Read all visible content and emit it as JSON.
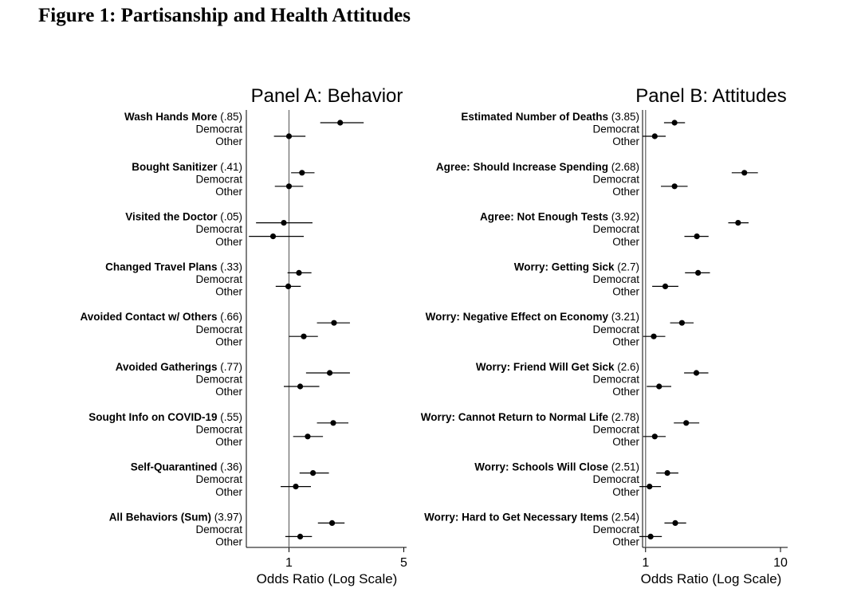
{
  "figure": {
    "title": "Figure 1: Partisanship and Health Attitudes"
  },
  "row_labels": {
    "democrat": "Democrat",
    "other": "Other"
  },
  "chart_data": [
    {
      "type": "scatter",
      "title": "Panel A: Behavior",
      "xlabel": "Odds Ratio (Log Scale)",
      "x_scale": "log",
      "xlim": [
        0.55,
        5.2
      ],
      "xticks": [
        1,
        5
      ],
      "reference_line": 1,
      "groups": [
        {
          "label": "Wash Hands More",
          "mean": "(.85)",
          "democrat": {
            "or": 2.05,
            "ci": [
              1.55,
              2.85
            ]
          },
          "other": {
            "or": 1.0,
            "ci": [
              0.81,
              1.26
            ]
          }
        },
        {
          "label": "Bought Sanitizer",
          "mean": "(.41)",
          "democrat": {
            "or": 1.2,
            "ci": [
              1.03,
              1.43
            ]
          },
          "other": {
            "or": 1.0,
            "ci": [
              0.82,
              1.22
            ]
          }
        },
        {
          "label": "Visited the Doctor",
          "mean": "(.05)",
          "democrat": {
            "or": 0.93,
            "ci": [
              0.63,
              1.39
            ]
          },
          "other": {
            "or": 0.8,
            "ci": [
              0.57,
              1.23
            ]
          }
        },
        {
          "label": "Changed Travel Plans",
          "mean": "(.33)",
          "democrat": {
            "or": 1.15,
            "ci": [
              0.98,
              1.37
            ]
          },
          "other": {
            "or": 0.99,
            "ci": [
              0.83,
              1.18
            ]
          }
        },
        {
          "label": "Avoided Contact w/ Others",
          "mean": "(.66)",
          "democrat": {
            "or": 1.88,
            "ci": [
              1.48,
              2.35
            ]
          },
          "other": {
            "or": 1.23,
            "ci": [
              1.0,
              1.5
            ]
          }
        },
        {
          "label": "Avoided Gatherings",
          "mean": "(.77)",
          "democrat": {
            "or": 1.77,
            "ci": [
              1.27,
              2.35
            ]
          },
          "other": {
            "or": 1.17,
            "ci": [
              0.93,
              1.53
            ]
          }
        },
        {
          "label": "Sought Info on COVID-19",
          "mean": "(.55)",
          "democrat": {
            "or": 1.86,
            "ci": [
              1.48,
              2.3
            ]
          },
          "other": {
            "or": 1.3,
            "ci": [
              1.06,
              1.61
            ]
          }
        },
        {
          "label": "Self-Quarantined",
          "mean": "(.36)",
          "democrat": {
            "or": 1.4,
            "ci": [
              1.16,
              1.75
            ]
          },
          "other": {
            "or": 1.1,
            "ci": [
              0.89,
              1.36
            ]
          }
        },
        {
          "label": "All Behaviors (Sum)",
          "mean": "(3.97)",
          "democrat": {
            "or": 1.83,
            "ci": [
              1.5,
              2.18
            ]
          },
          "other": {
            "or": 1.17,
            "ci": [
              0.95,
              1.38
            ]
          }
        }
      ]
    },
    {
      "type": "scatter",
      "title": "Panel B: Attitudes",
      "xlabel": "Odds Ratio (Log Scale)",
      "x_scale": "log",
      "xlim": [
        0.95,
        11.3
      ],
      "xticks": [
        1,
        10
      ],
      "reference_line": 1,
      "groups": [
        {
          "label": "Estimated Number of Deaths",
          "mean": "(3.85)",
          "democrat": {
            "or": 1.64,
            "ci": [
              1.37,
              1.96
            ]
          },
          "other": {
            "or": 1.17,
            "ci": [
              0.95,
              1.41
            ]
          }
        },
        {
          "label": "Agree: Should Increase Spending",
          "mean": "(2.68)",
          "democrat": {
            "or": 5.4,
            "ci": [
              4.35,
              6.8
            ]
          },
          "other": {
            "or": 1.64,
            "ci": [
              1.3,
              2.05
            ]
          }
        },
        {
          "label": "Agree: Not Enough Tests",
          "mean": "(3.92)",
          "democrat": {
            "or": 4.85,
            "ci": [
              4.1,
              5.8
            ]
          },
          "other": {
            "or": 2.4,
            "ci": [
              1.94,
              2.93
            ]
          }
        },
        {
          "label": "Worry: Getting Sick",
          "mean": "(2.7)",
          "democrat": {
            "or": 2.45,
            "ci": [
              1.96,
              3.0
            ]
          },
          "other": {
            "or": 1.4,
            "ci": [
              1.12,
              1.75
            ]
          }
        },
        {
          "label": "Worry: Negative Effect on Economy",
          "mean": "(3.21)",
          "democrat": {
            "or": 1.86,
            "ci": [
              1.52,
              2.27
            ]
          },
          "other": {
            "or": 1.15,
            "ci": [
              0.96,
              1.4
            ]
          }
        },
        {
          "label": "Worry: Friend Will Get Sick",
          "mean": "(2.6)",
          "democrat": {
            "or": 2.38,
            "ci": [
              1.93,
              2.92
            ]
          },
          "other": {
            "or": 1.26,
            "ci": [
              1.02,
              1.55
            ]
          }
        },
        {
          "label": "Worry: Cannot Return to Normal Life",
          "mean": "(2.78)",
          "democrat": {
            "or": 2.0,
            "ci": [
              1.62,
              2.5
            ]
          },
          "other": {
            "or": 1.17,
            "ci": [
              0.96,
              1.41
            ]
          }
        },
        {
          "label": "Worry: Schools Will Close",
          "mean": "(2.51)",
          "democrat": {
            "or": 1.45,
            "ci": [
              1.2,
              1.75
            ]
          },
          "other": {
            "or": 1.07,
            "ci": [
              0.9,
              1.3
            ]
          }
        },
        {
          "label": "Worry: Hard to Get Necessary Items",
          "mean": "(2.54)",
          "democrat": {
            "or": 1.66,
            "ci": [
              1.38,
              2.0
            ]
          },
          "other": {
            "or": 1.09,
            "ci": [
              0.9,
              1.32
            ]
          }
        }
      ]
    }
  ]
}
